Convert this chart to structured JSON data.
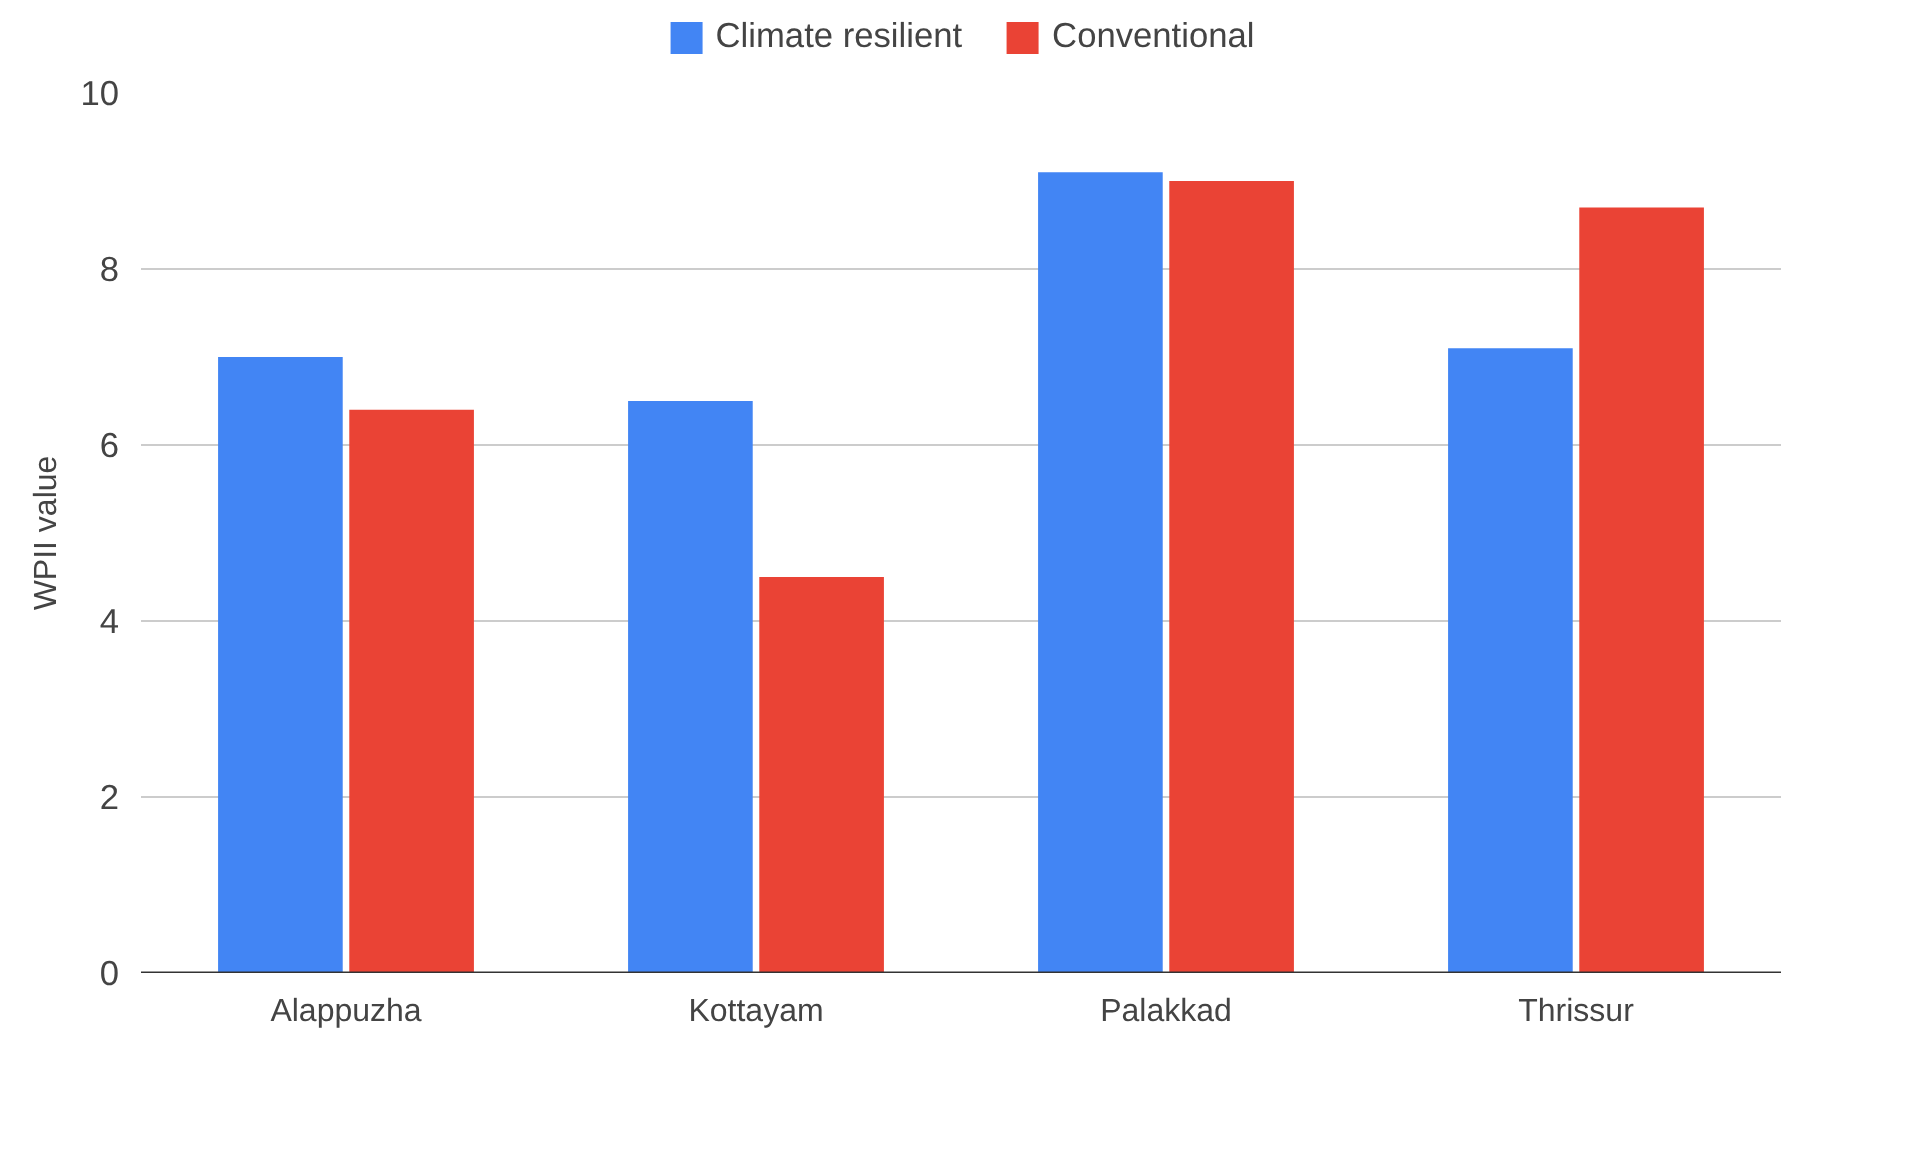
{
  "chart_data": {
    "type": "bar",
    "ylabel": "WPII value",
    "categories": [
      "Alappuzha",
      "Kottayam",
      "Palakkad",
      "Thrissur"
    ],
    "series": [
      {
        "name": "Climate resilient",
        "color": "#4285f4",
        "values": [
          7.0,
          6.5,
          9.1,
          7.1
        ]
      },
      {
        "name": "Conventional",
        "color": "#ea4335",
        "values": [
          6.4,
          4.5,
          9.0,
          8.7
        ]
      }
    ],
    "ylim": [
      0,
      10
    ],
    "yticks": [
      0,
      2,
      4,
      6,
      8,
      10
    ],
    "grid": "y",
    "legend": "top"
  }
}
